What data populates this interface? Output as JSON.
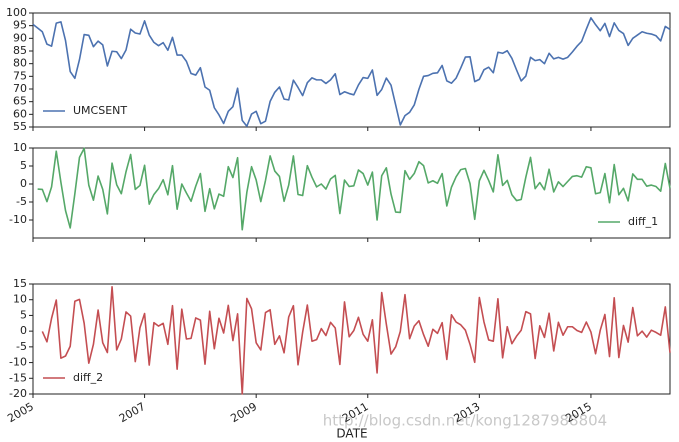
{
  "chart_data": {
    "type": "line",
    "xlabel": "DATE",
    "watermark": "http://blog.csdn.net/kong1287988804",
    "xlim": [
      2005,
      2016.417
    ],
    "xticks": [
      2005,
      2007,
      2009,
      2011,
      2013,
      2015
    ],
    "grid": false,
    "x": [
      2005,
      2005.083,
      2005.167,
      2005.25,
      2005.333,
      2005.417,
      2005.5,
      2005.583,
      2005.667,
      2005.75,
      2005.833,
      2005.917,
      2006,
      2006.083,
      2006.167,
      2006.25,
      2006.333,
      2006.417,
      2006.5,
      2006.583,
      2006.667,
      2006.75,
      2006.833,
      2006.917,
      2007,
      2007.083,
      2007.167,
      2007.25,
      2007.333,
      2007.417,
      2007.5,
      2007.583,
      2007.667,
      2007.75,
      2007.833,
      2007.917,
      2008,
      2008.083,
      2008.167,
      2008.25,
      2008.333,
      2008.417,
      2008.5,
      2008.583,
      2008.667,
      2008.75,
      2008.833,
      2008.917,
      2009,
      2009.083,
      2009.167,
      2009.25,
      2009.333,
      2009.417,
      2009.5,
      2009.583,
      2009.667,
      2009.75,
      2009.833,
      2009.917,
      2010,
      2010.083,
      2010.167,
      2010.25,
      2010.333,
      2010.417,
      2010.5,
      2010.583,
      2010.667,
      2010.75,
      2010.833,
      2010.917,
      2011,
      2011.083,
      2011.167,
      2011.25,
      2011.333,
      2011.417,
      2011.5,
      2011.583,
      2011.667,
      2011.75,
      2011.833,
      2011.917,
      2012,
      2012.083,
      2012.167,
      2012.25,
      2012.333,
      2012.417,
      2012.5,
      2012.583,
      2012.667,
      2012.75,
      2012.833,
      2012.917,
      2013,
      2013.083,
      2013.167,
      2013.25,
      2013.333,
      2013.417,
      2013.5,
      2013.583,
      2013.667,
      2013.75,
      2013.833,
      2013.917,
      2014,
      2014.083,
      2014.167,
      2014.25,
      2014.333,
      2014.417,
      2014.5,
      2014.583,
      2014.667,
      2014.75,
      2014.833,
      2014.917,
      2015,
      2015.083,
      2015.167,
      2015.25,
      2015.333,
      2015.417,
      2015.5,
      2015.583,
      2015.667,
      2015.75,
      2015.833,
      2015.917,
      2016,
      2016.083,
      2016.167,
      2016.25,
      2016.333,
      2016.417
    ],
    "panels": [
      {
        "ylim": [
          55,
          100
        ],
        "yticks": [
          55,
          60,
          65,
          70,
          75,
          80,
          85,
          90,
          95,
          100
        ],
        "legend": "lower left",
        "series": [
          {
            "name": "UMCSENT",
            "color": "#4c72b0",
            "values": [
              95.5,
              94.1,
              92.6,
              87.7,
              86.9,
              96.0,
              96.5,
              89.1,
              76.9,
              74.2,
              81.6,
              91.5,
              91.2,
              86.7,
              88.9,
              87.4,
              79.1,
              84.9,
              84.7,
              82.0,
              85.4,
              93.6,
              92.1,
              91.7,
              96.9,
              91.3,
              88.4,
              87.1,
              88.3,
              85.3,
              90.4,
              83.4,
              83.4,
              80.9,
              76.1,
              75.5,
              78.4,
              70.8,
              69.5,
              62.6,
              59.8,
              56.4,
              61.2,
              63.0,
              70.3,
              57.6,
              55.3,
              60.1,
              61.2,
              56.3,
              57.3,
              65.1,
              68.7,
              70.8,
              66.0,
              65.7,
              73.5,
              70.6,
              67.4,
              72.5,
              74.4,
              73.6,
              73.6,
              72.2,
              73.6,
              76.0,
              67.8,
              68.9,
              68.2,
              67.7,
              71.6,
              74.5,
              74.2,
              77.5,
              67.5,
              69.8,
              74.3,
              71.5,
              63.7,
              55.8,
              59.5,
              60.8,
              63.7,
              69.9,
              75.0,
              75.3,
              76.2,
              76.4,
              79.3,
              73.2,
              72.3,
              74.3,
              78.3,
              82.6,
              82.7,
              72.9,
              73.8,
              77.6,
              78.6,
              76.4,
              84.5,
              84.1,
              85.1,
              82.1,
              77.5,
              73.2,
              75.1,
              82.5,
              81.2,
              81.6,
              80.0,
              84.1,
              81.9,
              82.5,
              81.8,
              82.5,
              84.6,
              86.9,
              88.8,
              93.6,
              98.1,
              95.4,
              93.0,
              95.9,
              90.7,
              96.1,
              93.1,
              91.9,
              87.2,
              90.0,
              91.3,
              92.6,
              92.0,
              91.7,
              91.0,
              89.0,
              94.7,
              93.5
            ]
          }
        ]
      },
      {
        "ylim": [
          -15,
          10
        ],
        "yticks": [
          -10,
          -5,
          0,
          5,
          10
        ],
        "legend": "lower right",
        "series": [
          {
            "name": "diff_1",
            "color": "#55a868",
            "values": [
              null,
              -1.4,
              -1.5,
              -4.9,
              -0.8,
              9.1,
              0.5,
              -7.4,
              -12.2,
              -2.7,
              7.4,
              9.9,
              -0.3,
              -4.5,
              2.2,
              -1.5,
              -8.3,
              5.8,
              -0.2,
              -2.7,
              3.4,
              8.2,
              -1.5,
              -0.4,
              5.2,
              -5.6,
              -2.9,
              -1.3,
              1.2,
              -3.0,
              5.1,
              -7.0,
              0.0,
              -2.5,
              -4.8,
              -0.6,
              2.9,
              -7.6,
              -1.3,
              -6.9,
              -2.8,
              -3.4,
              4.8,
              1.8,
              7.3,
              -12.7,
              -2.3,
              4.8,
              1.1,
              -4.9,
              1.0,
              7.8,
              3.6,
              2.1,
              -4.8,
              -0.3,
              7.8,
              -2.9,
              -3.2,
              5.1,
              1.9,
              -0.8,
              0.0,
              -1.4,
              1.4,
              2.4,
              -8.2,
              1.1,
              -0.7,
              -0.5,
              3.9,
              2.9,
              -0.3,
              3.3,
              -10.0,
              2.3,
              4.5,
              -2.8,
              -7.8,
              -7.9,
              3.7,
              1.3,
              2.9,
              6.2,
              5.1,
              0.3,
              0.9,
              0.2,
              2.9,
              -6.1,
              -0.9,
              2.0,
              4.0,
              4.3,
              0.1,
              -9.8,
              0.9,
              3.8,
              1.0,
              -2.2,
              8.1,
              -0.4,
              1.0,
              -3.0,
              -4.6,
              -4.3,
              1.9,
              7.4,
              -1.3,
              0.4,
              -1.6,
              4.1,
              -2.2,
              0.6,
              -0.7,
              0.7,
              2.1,
              2.3,
              1.9,
              4.8,
              4.5,
              -2.7,
              -2.4,
              2.9,
              -5.2,
              5.4,
              -3.0,
              -1.2,
              -4.7,
              2.8,
              1.3,
              1.3,
              -0.6,
              -0.3,
              -0.7,
              -2.0,
              5.7,
              -1.2
            ]
          }
        ]
      },
      {
        "ylim": [
          -20,
          15
        ],
        "yticks": [
          -20,
          -15,
          -10,
          -5,
          0,
          5,
          10,
          15
        ],
        "legend": "lower left",
        "series": [
          {
            "name": "diff_2",
            "color": "#c44e52",
            "values": [
              null,
              null,
              -0.1,
              -3.4,
              4.1,
              9.9,
              -8.6,
              -7.9,
              -4.8,
              9.5,
              10.1,
              2.5,
              -10.2,
              -4.2,
              6.7,
              -3.7,
              -6.8,
              14.1,
              -6.0,
              -2.5,
              6.1,
              4.8,
              -9.7,
              1.1,
              5.6,
              -10.8,
              2.7,
              1.6,
              2.5,
              -4.2,
              8.1,
              -12.1,
              7.0,
              -2.5,
              -2.3,
              4.2,
              3.5,
              -10.5,
              6.3,
              -5.6,
              4.1,
              -0.6,
              8.2,
              -3.0,
              5.5,
              -20.0,
              10.4,
              7.1,
              -3.7,
              -6.0,
              5.9,
              6.8,
              -4.2,
              -1.5,
              -6.9,
              4.5,
              8.1,
              -10.7,
              -0.3,
              8.3,
              -3.2,
              -2.7,
              0.8,
              -1.4,
              2.8,
              1.0,
              -10.6,
              9.3,
              -1.8,
              0.2,
              4.4,
              -1.0,
              -3.2,
              3.6,
              -13.3,
              12.3,
              2.2,
              -7.3,
              -5.0,
              -0.1,
              11.6,
              -2.4,
              1.6,
              3.3,
              -1.1,
              -4.8,
              0.6,
              -0.7,
              2.7,
              -9.0,
              5.2,
              2.9,
              2.0,
              0.3,
              -4.2,
              -9.9,
              10.7,
              2.9,
              -2.8,
              -3.2,
              10.3,
              -8.5,
              1.4,
              -4.0,
              -1.6,
              0.3,
              6.2,
              5.5,
              -8.7,
              1.7,
              -2.0,
              5.7,
              -6.3,
              2.8,
              -1.3,
              1.4,
              1.4,
              0.2,
              -0.4,
              2.9,
              -0.3,
              -7.2,
              0.3,
              5.3,
              -8.1,
              10.6,
              -8.4,
              1.8,
              -3.5,
              7.5,
              -1.5,
              0.0,
              -1.9,
              0.3,
              -0.4,
              -1.3,
              7.7,
              -6.9
            ]
          }
        ]
      }
    ]
  }
}
